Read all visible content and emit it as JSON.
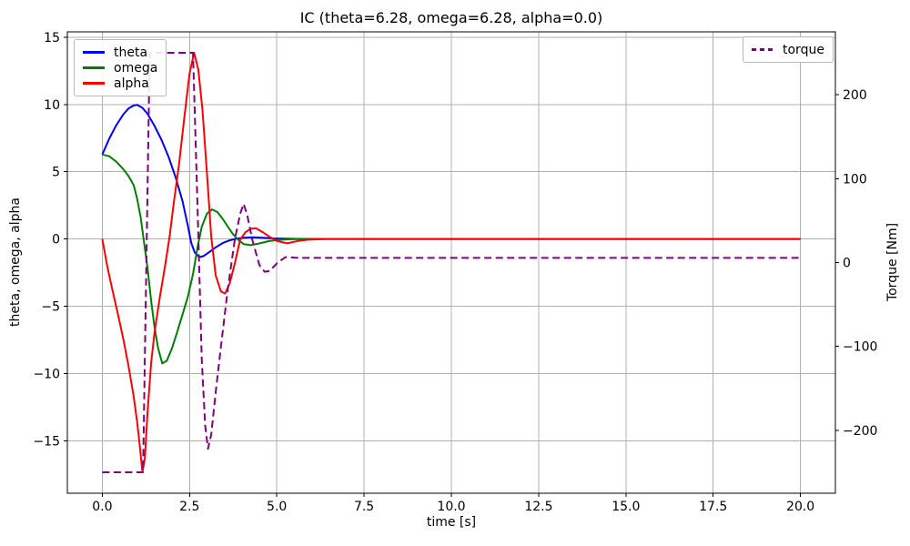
{
  "chart_data": {
    "type": "line",
    "title": "IC (theta=6.28, omega=6.28, alpha=0.0)",
    "xlabel": "time [s]",
    "ylabel_left": "theta, omega, alpha",
    "ylabel_right": "Torque [Nm]",
    "xlim": [
      -1,
      21
    ],
    "ylim_left": [
      -18.9,
      15.4
    ],
    "ylim_right": [
      -275,
      275
    ],
    "grid": true,
    "grid_color": "#b0b0b0",
    "x_tick_values": [
      0,
      2.5,
      5,
      7.5,
      10,
      12.5,
      15,
      17.5,
      20
    ],
    "x_tick_labels": [
      "0.0",
      "2.5",
      "5.0",
      "7.5",
      "10.0",
      "12.5",
      "15.0",
      "17.5",
      "20.0"
    ],
    "y_tick_values_left": [
      15,
      10,
      5,
      0,
      -5,
      -10,
      -15
    ],
    "y_tick_labels_left": [
      "15",
      "10",
      "5",
      "0",
      "−5",
      "−10",
      "−15"
    ],
    "y_tick_values_right": [
      200,
      100,
      0,
      -100,
      -200
    ],
    "y_tick_labels_right": [
      "200",
      "100",
      "0",
      "−100",
      "−200"
    ],
    "legends": [
      {
        "id": "legend-left-box",
        "entries": [
          {
            "label": "theta",
            "color": "#0000ff",
            "dash": false
          },
          {
            "label": "omega",
            "color": "#008000",
            "dash": false
          },
          {
            "label": "alpha",
            "color": "#ff0000",
            "dash": false
          }
        ]
      },
      {
        "id": "legend-right-box",
        "entries": [
          {
            "label": "torque",
            "color": "#800080",
            "dash": true
          }
        ]
      }
    ],
    "series": [
      {
        "name": "theta",
        "axis": "left",
        "color": "#0000ff",
        "dash": false,
        "width": 2,
        "points": [
          [
            0,
            6.28
          ],
          [
            0.2,
            7.45
          ],
          [
            0.4,
            8.45
          ],
          [
            0.6,
            9.25
          ],
          [
            0.75,
            9.7
          ],
          [
            0.9,
            9.93
          ],
          [
            1.0,
            9.97
          ],
          [
            1.15,
            9.75
          ],
          [
            1.3,
            9.3
          ],
          [
            1.5,
            8.4
          ],
          [
            1.7,
            7.35
          ],
          [
            1.9,
            6.1
          ],
          [
            2.1,
            4.6
          ],
          [
            2.3,
            2.8
          ],
          [
            2.45,
            1.0
          ],
          [
            2.55,
            -0.3
          ],
          [
            2.65,
            -1.0
          ],
          [
            2.78,
            -1.35
          ],
          [
            2.9,
            -1.27
          ],
          [
            3.05,
            -1.0
          ],
          [
            3.25,
            -0.62
          ],
          [
            3.45,
            -0.3
          ],
          [
            3.65,
            -0.1
          ],
          [
            3.85,
            0.03
          ],
          [
            4.05,
            0.1
          ],
          [
            4.3,
            0.13
          ],
          [
            4.6,
            0.09
          ],
          [
            4.9,
            0.04
          ],
          [
            5.2,
            0.02
          ],
          [
            5.6,
            0.01
          ],
          [
            6.5,
            0
          ],
          [
            20,
            0
          ]
        ]
      },
      {
        "name": "omega",
        "axis": "left",
        "color": "#008000",
        "dash": false,
        "width": 2,
        "points": [
          [
            0,
            6.28
          ],
          [
            0.2,
            6.15
          ],
          [
            0.4,
            5.75
          ],
          [
            0.6,
            5.2
          ],
          [
            0.75,
            4.7
          ],
          [
            0.9,
            4.0
          ],
          [
            1.0,
            3.0
          ],
          [
            1.1,
            1.6
          ],
          [
            1.2,
            -0.3
          ],
          [
            1.3,
            -2.2
          ],
          [
            1.4,
            -4.6
          ],
          [
            1.5,
            -6.6
          ],
          [
            1.6,
            -8.1
          ],
          [
            1.72,
            -9.25
          ],
          [
            1.85,
            -9.05
          ],
          [
            2.0,
            -8.1
          ],
          [
            2.15,
            -6.9
          ],
          [
            2.3,
            -5.6
          ],
          [
            2.45,
            -4.3
          ],
          [
            2.6,
            -2.6
          ],
          [
            2.73,
            -0.6
          ],
          [
            2.85,
            0.9
          ],
          [
            3.0,
            1.9
          ],
          [
            3.15,
            2.2
          ],
          [
            3.3,
            2.0
          ],
          [
            3.45,
            1.5
          ],
          [
            3.6,
            0.9
          ],
          [
            3.75,
            0.35
          ],
          [
            3.9,
            -0.08
          ],
          [
            4.05,
            -0.38
          ],
          [
            4.25,
            -0.46
          ],
          [
            4.5,
            -0.33
          ],
          [
            4.75,
            -0.17
          ],
          [
            5.0,
            -0.07
          ],
          [
            5.4,
            -0.02
          ],
          [
            5.9,
            0
          ],
          [
            20,
            0
          ]
        ]
      },
      {
        "name": "alpha",
        "axis": "left",
        "color": "#ff0000",
        "dash": false,
        "width": 2,
        "points": [
          [
            0,
            0
          ],
          [
            0.15,
            -2.1
          ],
          [
            0.3,
            -3.9
          ],
          [
            0.45,
            -5.6
          ],
          [
            0.6,
            -7.4
          ],
          [
            0.75,
            -9.4
          ],
          [
            0.9,
            -11.7
          ],
          [
            1.0,
            -13.6
          ],
          [
            1.08,
            -15.5
          ],
          [
            1.15,
            -17.35
          ],
          [
            1.22,
            -16.3
          ],
          [
            1.3,
            -12.8
          ],
          [
            1.4,
            -9.2
          ],
          [
            1.5,
            -6.9
          ],
          [
            1.65,
            -4.3
          ],
          [
            1.8,
            -2.0
          ],
          [
            1.93,
            0.2
          ],
          [
            2.05,
            2.7
          ],
          [
            2.2,
            5.6
          ],
          [
            2.35,
            9.0
          ],
          [
            2.5,
            12.3
          ],
          [
            2.63,
            13.85
          ],
          [
            2.75,
            12.6
          ],
          [
            2.87,
            9.6
          ],
          [
            3.0,
            4.8
          ],
          [
            3.12,
            0.2
          ],
          [
            3.25,
            -2.7
          ],
          [
            3.4,
            -3.9
          ],
          [
            3.52,
            -4.05
          ],
          [
            3.65,
            -3.3
          ],
          [
            3.8,
            -1.8
          ],
          [
            3.95,
            -0.05
          ],
          [
            4.1,
            0.5
          ],
          [
            4.25,
            0.75
          ],
          [
            4.4,
            0.8
          ],
          [
            4.6,
            0.5
          ],
          [
            4.8,
            0.15
          ],
          [
            5.0,
            -0.15
          ],
          [
            5.3,
            -0.32
          ],
          [
            5.6,
            -0.15
          ],
          [
            5.9,
            -0.05
          ],
          [
            6.4,
            0
          ],
          [
            20,
            0
          ]
        ]
      },
      {
        "name": "torque",
        "axis": "right",
        "color": "#800080",
        "dash": true,
        "width": 2,
        "points": [
          [
            0,
            -250
          ],
          [
            1.17,
            -250
          ],
          [
            1.36,
            250
          ],
          [
            2.6,
            250
          ],
          [
            2.72,
            80
          ],
          [
            2.85,
            -115
          ],
          [
            2.95,
            -195
          ],
          [
            3.03,
            -222
          ],
          [
            3.12,
            -205
          ],
          [
            3.25,
            -155
          ],
          [
            3.4,
            -100
          ],
          [
            3.6,
            -30
          ],
          [
            3.8,
            28
          ],
          [
            3.95,
            58
          ],
          [
            4.05,
            70
          ],
          [
            4.15,
            57
          ],
          [
            4.3,
            27
          ],
          [
            4.5,
            -3
          ],
          [
            4.65,
            -11
          ],
          [
            4.8,
            -10
          ],
          [
            5.0,
            -1
          ],
          [
            5.25,
            6.5
          ],
          [
            5.6,
            5.5
          ],
          [
            6.5,
            5.5
          ],
          [
            20,
            5.5
          ]
        ]
      }
    ]
  }
}
